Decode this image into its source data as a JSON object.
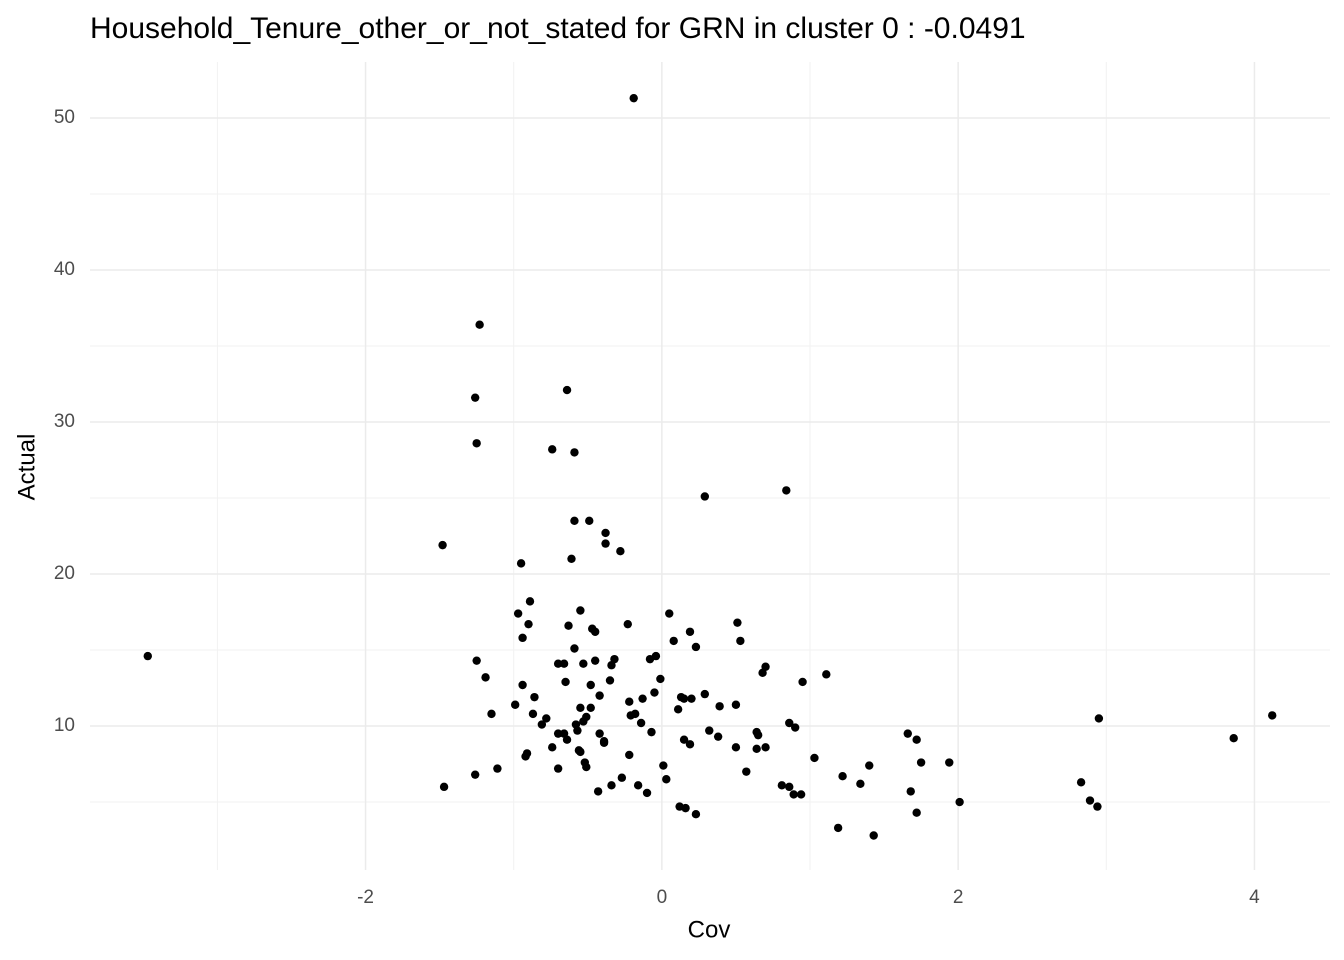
{
  "chart_data": {
    "type": "scatter",
    "title": "Household_Tenure_other_or_not_stated for GRN in cluster 0 : -0.0491",
    "x_label": "Cov",
    "y_label": "Actual",
    "color": "#000000",
    "grid": true,
    "xlim": [
      -3.86,
      4.51
    ],
    "ylim": [
      0.53,
      53.68
    ],
    "xticks": [
      -2,
      0,
      2,
      4
    ],
    "yticks": [
      10,
      20,
      30,
      40,
      50
    ],
    "x": [
      -3.47,
      -0.19,
      -1.23,
      -1.26,
      -1.25,
      -0.64,
      -0.74,
      -0.59,
      -1.48,
      -0.95,
      -0.59,
      -0.49,
      -0.38,
      -0.38,
      -0.28,
      -0.61,
      0.29,
      0.84,
      -0.89,
      -0.97,
      -0.9,
      -0.94,
      -0.55,
      -0.63,
      -0.47,
      -0.45,
      -0.23,
      0.05,
      0.51,
      0.53,
      0.19,
      0.23,
      0.08,
      -0.59,
      -0.66,
      -0.7,
      -0.53,
      -0.45,
      -0.32,
      -0.34,
      -0.08,
      -0.04,
      -1.25,
      -1.19,
      -0.65,
      -0.48,
      -0.35,
      -0.01,
      -0.05,
      -0.13,
      -0.42,
      -0.94,
      -0.86,
      -0.99,
      -1.15,
      -0.87,
      -0.78,
      -0.81,
      -0.55,
      -0.48,
      -0.51,
      -0.53,
      -0.21,
      -0.18,
      -0.22,
      -0.14,
      0.11,
      0.13,
      0.15,
      0.2,
      0.29,
      0.39,
      0.5,
      0.68,
      0.7,
      0.95,
      1.11,
      0.32,
      0.38,
      0.15,
      0.19,
      -0.07,
      -0.42,
      -0.39,
      -0.39,
      -0.57,
      -0.58,
      -0.7,
      -0.66,
      -0.64,
      -0.74,
      -0.56,
      -0.55,
      -0.91,
      -0.92,
      -0.22,
      0.5,
      0.64,
      0.7,
      0.65,
      0.64,
      0.86,
      0.9,
      1.66,
      1.72,
      -1.11,
      -1.26,
      -0.7,
      -0.51,
      -0.52,
      0.01,
      0.03,
      -0.27,
      -0.34,
      -0.16,
      -0.1,
      -0.43,
      -1.47,
      0.57,
      1.03,
      0.81,
      0.86,
      0.89,
      0.94,
      1.22,
      1.34,
      1.4,
      1.75,
      1.94,
      1.68,
      1.72,
      2.01,
      0.12,
      0.16,
      0.23,
      1.19,
      1.43,
      2.83,
      2.89,
      2.94,
      2.95,
      3.86,
      4.12
    ],
    "values": [
      14.6,
      51.3,
      36.4,
      31.6,
      28.6,
      32.1,
      28.2,
      28.0,
      21.9,
      20.7,
      23.5,
      23.5,
      22.7,
      22.0,
      21.5,
      21.0,
      25.1,
      25.5,
      18.2,
      17.4,
      16.7,
      15.8,
      17.6,
      16.6,
      16.4,
      16.2,
      16.7,
      17.4,
      16.8,
      15.6,
      16.2,
      15.2,
      15.6,
      15.1,
      14.1,
      14.1,
      14.1,
      14.3,
      14.4,
      14.0,
      14.4,
      14.6,
      14.3,
      13.2,
      12.9,
      12.7,
      13.0,
      13.1,
      12.2,
      11.8,
      12.0,
      12.7,
      11.9,
      11.4,
      10.8,
      10.8,
      10.5,
      10.1,
      11.2,
      11.2,
      10.6,
      10.3,
      10.7,
      10.8,
      11.6,
      10.2,
      11.1,
      11.9,
      11.8,
      11.8,
      12.1,
      11.3,
      11.4,
      13.5,
      13.9,
      12.9,
      13.4,
      9.7,
      9.3,
      9.1,
      8.8,
      9.6,
      9.5,
      9.0,
      8.9,
      9.7,
      10.1,
      9.5,
      9.5,
      9.1,
      8.6,
      8.4,
      8.3,
      8.2,
      8.0,
      8.1,
      8.6,
      8.5,
      8.6,
      9.4,
      9.6,
      10.2,
      9.9,
      9.5,
      9.1,
      7.2,
      6.8,
      7.2,
      7.3,
      7.6,
      7.4,
      6.5,
      6.6,
      6.1,
      6.1,
      5.6,
      5.7,
      6.0,
      7.0,
      7.9,
      6.1,
      6.0,
      5.5,
      5.5,
      6.7,
      6.2,
      7.4,
      7.6,
      7.6,
      5.7,
      4.3,
      5.0,
      4.7,
      4.6,
      4.2,
      3.3,
      2.8,
      6.3,
      5.1,
      4.7,
      10.5,
      9.2,
      10.7
    ]
  }
}
